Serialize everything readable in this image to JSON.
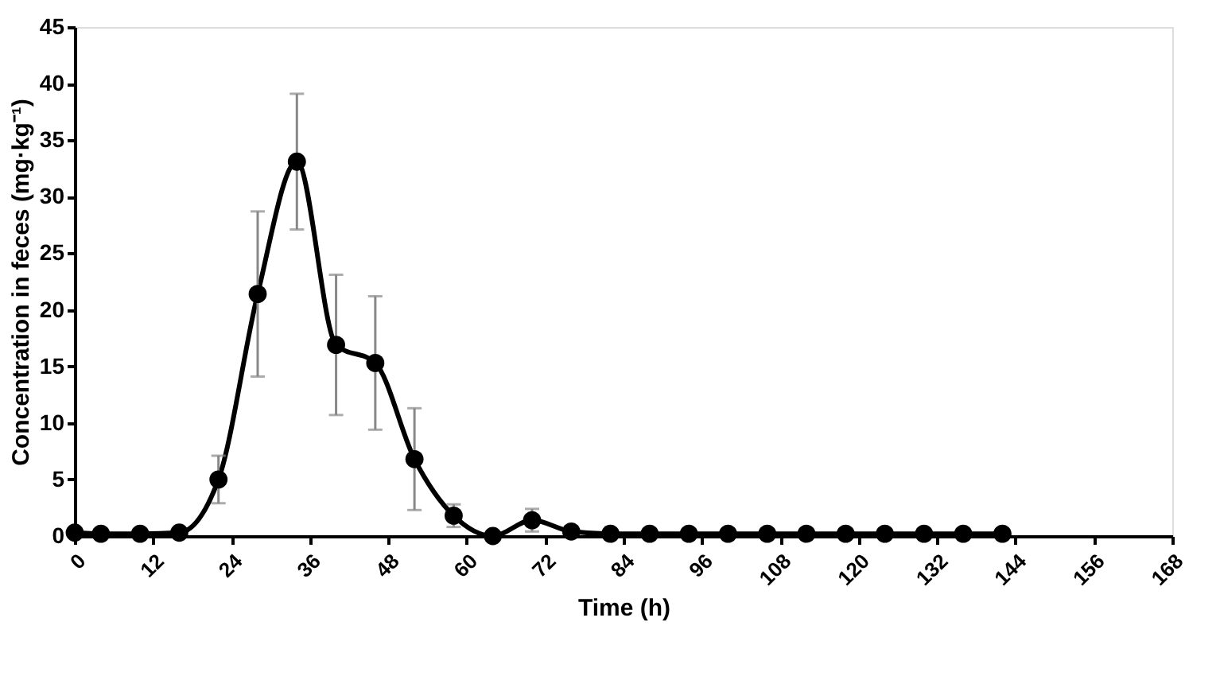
{
  "chart_data": {
    "type": "line",
    "xlabel": "Time (h)",
    "ylabel": "Concentration in feces (mg·kg⁻¹)",
    "x": [
      0,
      4,
      10,
      16,
      22,
      28,
      34,
      40,
      46,
      52,
      58,
      64,
      70,
      76,
      82,
      88,
      94,
      100,
      106,
      112,
      118,
      124,
      130,
      136,
      142
    ],
    "series": [
      {
        "color": "#000000",
        "values": [
          0.3,
          0.2,
          0.2,
          0.3,
          5.0,
          21.4,
          33.1,
          16.9,
          15.3,
          6.8,
          1.8,
          0.0,
          1.4,
          0.4,
          0.2,
          0.2,
          0.2,
          0.2,
          0.2,
          0.2,
          0.2,
          0.2,
          0.2,
          0.2,
          0.2
        ],
        "errors": [
          null,
          null,
          null,
          null,
          2.1,
          7.3,
          6.0,
          6.2,
          5.9,
          4.5,
          1.0,
          null,
          1.0,
          null,
          null,
          null,
          null,
          null,
          null,
          null,
          null,
          null,
          null,
          null,
          null
        ]
      }
    ],
    "xlim": [
      0,
      168
    ],
    "xticks": [
      0,
      12,
      24,
      36,
      48,
      60,
      72,
      84,
      96,
      108,
      120,
      132,
      144,
      156,
      168
    ],
    "ylim": [
      0,
      45
    ],
    "yticks": [
      0,
      5,
      10,
      15,
      20,
      25,
      30,
      35,
      40,
      45
    ],
    "grid": false,
    "marker": "circle",
    "line_style": "solid"
  }
}
